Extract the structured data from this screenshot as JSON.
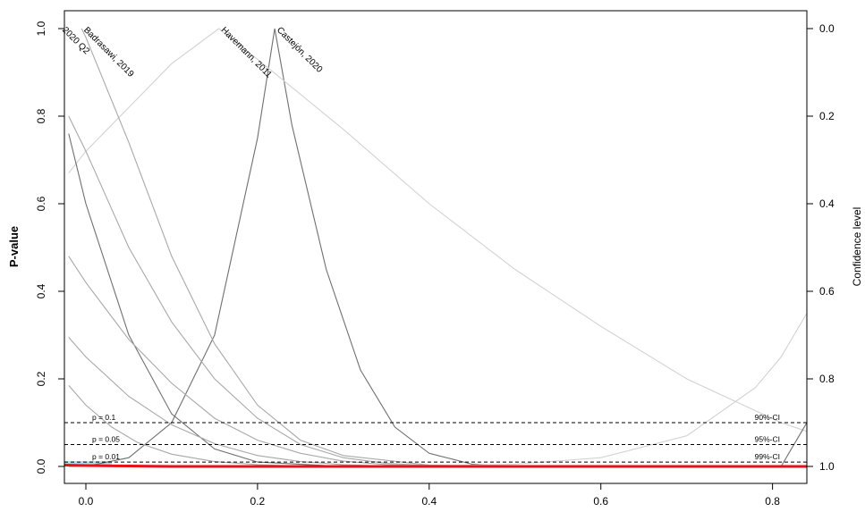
{
  "chart_data": {
    "type": "line",
    "title": "",
    "ylabel": "P-value",
    "ylabel_right": "Confidence level",
    "xlabel": "",
    "xlim": [
      -0.025,
      0.84
    ],
    "ylim": [
      0,
      1
    ],
    "x_ticks": [
      0.0,
      0.2,
      0.4,
      0.6,
      0.8
    ],
    "x_tick_labels": [
      "0.0",
      "0.2",
      "0.4",
      "0.6",
      "0.8"
    ],
    "y_ticks": [
      0.0,
      0.2,
      0.4,
      0.6,
      0.8,
      1.0
    ],
    "y_tick_labels": [
      "0.0",
      "0.2",
      "0.4",
      "0.6",
      "0.8",
      "1.0"
    ],
    "y_right_ticks": [
      1.0,
      0.8,
      0.6,
      0.4,
      0.2,
      0.0
    ],
    "y_right_tick_labels": [
      "0.0",
      "0.2",
      "0.4",
      "0.6",
      "0.8",
      "1.0"
    ],
    "grid": false,
    "thresholds": [
      {
        "y": 0.1,
        "left_label": "p = 0.1",
        "right_label": "90%-CI"
      },
      {
        "y": 0.05,
        "left_label": "p = 0.05",
        "right_label": "95%-CI"
      },
      {
        "y": 0.01,
        "left_label": "p = 0.01",
        "right_label": "99%-CI"
      }
    ],
    "colors": {
      "curve_dark": "#6f6f6f",
      "curve_mid": "#a8a8a8",
      "curve_light": "#d2d2d2",
      "combined": "#e8101a",
      "band": "#a9cde0"
    },
    "series": [
      {
        "name": "Castejón, 2020",
        "label_visible": true,
        "peak": 0.22,
        "color": "dark",
        "x": [
          -0.02,
          0.0,
          0.05,
          0.1,
          0.15,
          0.2,
          0.22,
          0.24,
          0.28,
          0.32,
          0.36,
          0.4,
          0.45,
          0.5,
          0.6
        ],
        "y": [
          0.0,
          0.0,
          0.02,
          0.1,
          0.3,
          0.75,
          1.0,
          0.78,
          0.45,
          0.22,
          0.09,
          0.03,
          0.005,
          0.0,
          0.0
        ]
      },
      {
        "name": "Havemann, 2011",
        "label_visible": true,
        "peak": 0.155,
        "color": "light",
        "x": [
          -0.02,
          0.0,
          0.05,
          0.1,
          0.155,
          0.2,
          0.3,
          0.4,
          0.5,
          0.6,
          0.7,
          0.81,
          0.84
        ],
        "y": [
          0.67,
          0.72,
          0.82,
          0.92,
          1.0,
          0.93,
          0.77,
          0.6,
          0.45,
          0.32,
          0.2,
          0.1,
          0.08
        ]
      },
      {
        "name": "Badrasawi, 2019",
        "label_visible": true,
        "peak": -0.005,
        "color": "mid",
        "x": [
          -0.005,
          0.0,
          0.05,
          0.1,
          0.15,
          0.2,
          0.25,
          0.3,
          0.4,
          0.5
        ],
        "y": [
          1.0,
          0.98,
          0.74,
          0.48,
          0.28,
          0.14,
          0.06,
          0.025,
          0.003,
          0.0
        ]
      },
      {
        "name": "2020 Q2",
        "label_visible": true,
        "peak": -0.03,
        "color": "dark",
        "x": [
          -0.02,
          0.0,
          0.05,
          0.1,
          0.15,
          0.2,
          0.3
        ],
        "y": [
          0.76,
          0.6,
          0.3,
          0.12,
          0.04,
          0.01,
          0.0
        ]
      },
      {
        "name": "",
        "label_visible": false,
        "peak": -0.02,
        "color": "mid",
        "x": [
          -0.02,
          0.0,
          0.05,
          0.1,
          0.15,
          0.2,
          0.25,
          0.3,
          0.35,
          0.4
        ],
        "y": [
          0.8,
          0.72,
          0.5,
          0.33,
          0.2,
          0.11,
          0.05,
          0.02,
          0.007,
          0.002
        ]
      },
      {
        "name": "",
        "label_visible": false,
        "peak": -0.02,
        "color": "mid",
        "x": [
          -0.02,
          0.0,
          0.05,
          0.1,
          0.15,
          0.2,
          0.25,
          0.3,
          0.35,
          0.4
        ],
        "y": [
          0.48,
          0.42,
          0.29,
          0.19,
          0.11,
          0.06,
          0.03,
          0.012,
          0.004,
          0.001
        ]
      },
      {
        "name": "",
        "label_visible": false,
        "peak": -0.02,
        "color": "mid",
        "x": [
          -0.02,
          0.0,
          0.05,
          0.1,
          0.15,
          0.2,
          0.25,
          0.3,
          0.35
        ],
        "y": [
          0.295,
          0.25,
          0.16,
          0.095,
          0.052,
          0.025,
          0.011,
          0.004,
          0.001
        ]
      },
      {
        "name": "",
        "label_visible": false,
        "peak": -0.02,
        "color": "mid",
        "x": [
          -0.02,
          0.0,
          0.03,
          0.06,
          0.1,
          0.15,
          0.2,
          0.25
        ],
        "y": [
          0.185,
          0.14,
          0.09,
          0.055,
          0.028,
          0.011,
          0.004,
          0.001
        ]
      },
      {
        "name": "",
        "label_visible": false,
        "peak": 0.84,
        "color": "light",
        "x": [
          0.4,
          0.5,
          0.6,
          0.7,
          0.78,
          0.81,
          0.84
        ],
        "y": [
          0.001,
          0.005,
          0.02,
          0.07,
          0.18,
          0.25,
          0.35
        ]
      },
      {
        "name": "",
        "label_visible": false,
        "peak": 0.84,
        "color": "dark",
        "x": [
          0.81,
          0.84
        ],
        "y": [
          0.0,
          0.1
        ]
      }
    ],
    "combined": {
      "x": [
        -0.025,
        0.0,
        0.05,
        0.1,
        0.2,
        0.3,
        0.5,
        0.84
      ],
      "y": [
        0.003,
        0.002,
        0.001,
        0.0,
        0.0,
        0.0,
        0.0,
        0.0
      ]
    },
    "ci_band": {
      "x_start": -0.025,
      "x_end": 0.03,
      "y_low": 0.0,
      "y_high": 0.012
    }
  }
}
